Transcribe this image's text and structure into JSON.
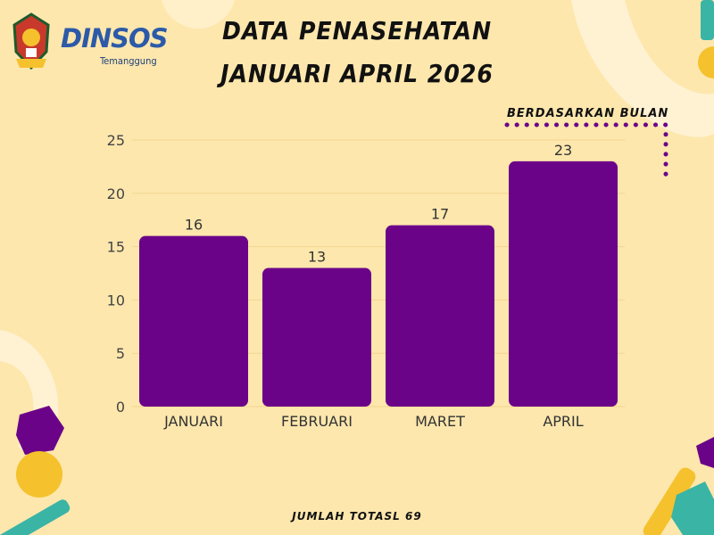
{
  "header": {
    "title_line1": "DATA PENASEHATAN",
    "title_line2": "JANUARI APRIL 2026",
    "brand": "DINSOS",
    "brand_sub": "Temanggung",
    "subtitle": "BERDASARKAN  BULAN"
  },
  "footer": {
    "text": "JUMLAH TOTASL 69"
  },
  "colors": {
    "background": "#fde7ad",
    "bar": "#6b0389",
    "accent_yellow": "#f5c12d",
    "accent_teal": "#3ab4a5"
  },
  "chart_data": {
    "type": "bar",
    "title": "DATA PENASEHATAN JANUARI APRIL 2026",
    "categories": [
      "JANUARI",
      "FEBRUARI",
      "MARET",
      "APRIL"
    ],
    "values": [
      16,
      13,
      17,
      23
    ],
    "ylim": [
      0,
      25
    ],
    "yticks": [
      0,
      5,
      10,
      15,
      20,
      25
    ],
    "grid": true,
    "bar_color": "#6b0389"
  }
}
